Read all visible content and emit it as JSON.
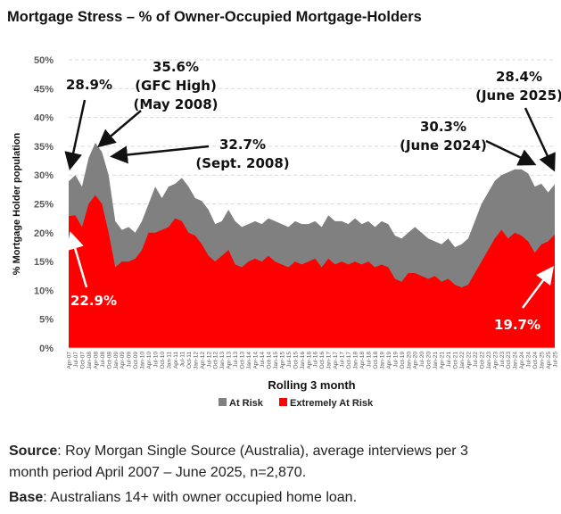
{
  "title": "Mortgage Stress – % of Owner-Occupied Mortgage-Holders",
  "source": {
    "label": "Source",
    "text": ": Roy Morgan Single Source (Australia), average interviews per 3",
    "text2": "month period April 2007 – June 2025, n=2,870.",
    "base_label": "Base",
    "base_text": ": Australians 14+ with owner occupied home loan."
  },
  "chart_data": {
    "type": "area",
    "stacked": false,
    "xlabel": "Rolling 3 month",
    "ylabel": "% Mortgage Holder population",
    "ylim": [
      0,
      50
    ],
    "yticks": [
      "0%",
      "5%",
      "10%",
      "15%",
      "20%",
      "25%",
      "30%",
      "35%",
      "40%",
      "45%",
      "50%"
    ],
    "grid": true,
    "legend": "bottom",
    "categories": [
      "Apr-07",
      "Jul-07",
      "Oct-07",
      "Jan-08",
      "Apr-08",
      "Jul-08",
      "Oct-08",
      "Jan-09",
      "Apr-09",
      "Jul-09",
      "Oct-09",
      "Jan-10",
      "Apr-10",
      "Jul-10",
      "Oct-10",
      "Jan-11",
      "Apr-11",
      "Jul-11",
      "Oct-11",
      "Jan-12",
      "Apr-12",
      "Jul-12",
      "Oct-12",
      "Jan-13",
      "Apr-13",
      "Jul-13",
      "Oct-13",
      "Jan-14",
      "Apr-14",
      "Jul-14",
      "Oct-14",
      "Jan-15",
      "Apr-15",
      "Jul-15",
      "Oct-15",
      "Jan-16",
      "Apr-16",
      "Jul-16",
      "Oct-16",
      "Jan-17",
      "Apr-17",
      "Jul-17",
      "Oct-17",
      "Jan-18",
      "Apr-18",
      "Jul-18",
      "Oct-18",
      "Jan-19",
      "Apr-19",
      "Jul-19",
      "Oct-19",
      "Jan-20",
      "Apr-20",
      "Jul-20",
      "Oct-20",
      "Jan-21",
      "Apr-21",
      "Jul-21",
      "Oct-21",
      "Jan-22",
      "Apr-22",
      "Jul-22",
      "Oct-22",
      "Jan-23",
      "Apr-23",
      "Jul-23",
      "Oct-23",
      "Jan-24",
      "Apr-24",
      "Jul-24",
      "Oct-24",
      "Jan-25",
      "Apr-25",
      "Jul-25"
    ],
    "series": [
      {
        "name": "At Risk",
        "color": "#808080",
        "values": [
          28.9,
          30,
          28,
          33,
          35.6,
          34,
          30,
          22,
          20.5,
          21,
          20,
          22,
          25,
          28,
          26,
          28,
          28.5,
          29.5,
          28,
          26,
          25.5,
          24,
          21.5,
          22,
          24,
          22,
          21,
          21.5,
          22,
          21.5,
          22.5,
          22,
          21.5,
          21,
          22,
          21.5,
          21.5,
          22,
          21,
          23,
          22,
          22,
          21.5,
          22.5,
          21.5,
          22,
          21,
          22,
          21.5,
          19.5,
          19,
          20,
          21,
          20,
          19,
          18.5,
          18,
          19,
          17.5,
          18,
          19,
          22,
          25,
          27,
          29,
          30,
          30.5,
          31,
          31,
          30.3,
          28,
          28.5,
          27,
          28.4
        ]
      },
      {
        "name": "Extremely At Risk",
        "color": "#ff0000",
        "values": [
          22.9,
          23,
          21,
          25,
          26.5,
          25,
          20,
          14,
          15,
          15,
          15.5,
          17,
          20,
          20,
          20.5,
          21,
          22.5,
          22,
          20,
          19.5,
          18,
          16,
          15,
          16,
          17,
          14.5,
          14,
          15,
          15.5,
          15,
          16,
          15,
          14.5,
          14,
          15,
          14.5,
          15,
          15.5,
          14,
          15.5,
          14.5,
          15,
          14.5,
          15,
          14.5,
          15,
          14,
          14.5,
          14,
          12,
          11.5,
          13,
          13,
          12.5,
          12,
          12.5,
          11.5,
          12,
          11,
          10.5,
          11,
          13,
          15,
          17,
          19,
          20.5,
          19,
          20,
          19.5,
          18.5,
          16.5,
          18,
          18.5,
          19.7
        ]
      }
    ],
    "annotations": [
      {
        "lines": [
          "28.9%"
        ],
        "color": "#111111"
      },
      {
        "lines": [
          "35.6%",
          "(GFC High)",
          "(May 2008)"
        ],
        "color": "#111111"
      },
      {
        "lines": [
          "32.7%",
          "(Sept. 2008)"
        ],
        "color": "#111111"
      },
      {
        "lines": [
          "30.3%",
          "(June 2024)"
        ],
        "color": "#111111"
      },
      {
        "lines": [
          "28.4%",
          "(June 2025)"
        ],
        "color": "#111111"
      },
      {
        "lines": [
          "22.9%"
        ],
        "color": "#ffffff"
      },
      {
        "lines": [
          "19.7%"
        ],
        "color": "#ffffff"
      }
    ]
  }
}
